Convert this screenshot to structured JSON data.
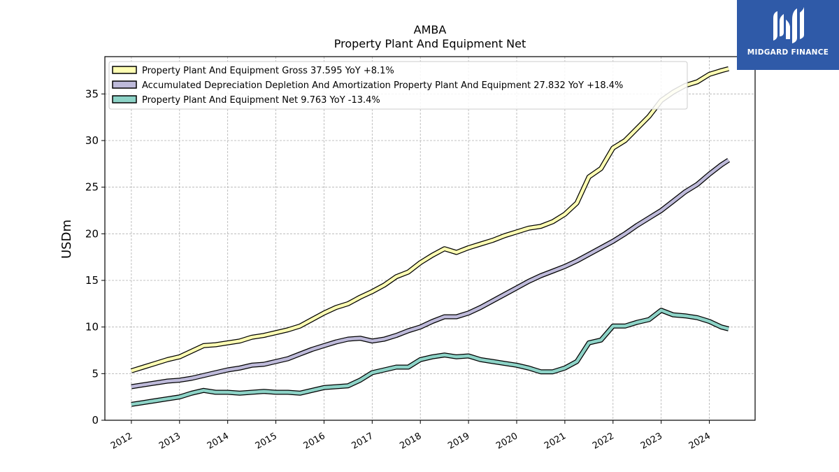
{
  "chart_data": {
    "type": "line",
    "title": "AMBA",
    "subtitle": "Property Plant And Equipment Net",
    "ylabel": "USDm",
    "xlabel": "",
    "ylim": [
      0,
      39
    ],
    "xlim": [
      2011.45,
      2024.95
    ],
    "yticks": [
      0,
      5,
      10,
      15,
      20,
      25,
      30,
      35
    ],
    "xticks": [
      "2012",
      "2013",
      "2014",
      "2015",
      "2016",
      "2017",
      "2018",
      "2019",
      "2020",
      "2021",
      "2022",
      "2023",
      "2024"
    ],
    "grid": true,
    "legend_position": "top-left",
    "x": [
      2012.0,
      2012.25,
      2012.5,
      2012.75,
      2013.0,
      2013.25,
      2013.5,
      2013.75,
      2014.0,
      2014.25,
      2014.5,
      2014.75,
      2015.0,
      2015.25,
      2015.5,
      2015.75,
      2016.0,
      2016.25,
      2016.5,
      2016.75,
      2017.0,
      2017.25,
      2017.5,
      2017.75,
      2018.0,
      2018.25,
      2018.5,
      2018.75,
      2019.0,
      2019.25,
      2019.5,
      2019.75,
      2020.0,
      2020.25,
      2020.5,
      2020.75,
      2021.0,
      2021.25,
      2021.5,
      2021.75,
      2022.0,
      2022.25,
      2022.5,
      2022.75,
      2023.0,
      2023.25,
      2023.5,
      2023.75,
      2024.0,
      2024.25,
      2024.4
    ],
    "series": [
      {
        "name": "Property Plant And Equipment Gross",
        "legend_label": "Property Plant And Equipment Gross  37.595 YoY +8.1%",
        "color": "#ffffb3",
        "values": [
          5.3,
          5.7,
          6.1,
          6.5,
          6.8,
          7.4,
          8.0,
          8.1,
          8.3,
          8.5,
          8.9,
          9.1,
          9.4,
          9.7,
          10.1,
          10.8,
          11.5,
          12.1,
          12.5,
          13.2,
          13.8,
          14.5,
          15.4,
          15.9,
          16.9,
          17.7,
          18.4,
          18.0,
          18.5,
          18.9,
          19.3,
          19.8,
          20.2,
          20.6,
          20.8,
          21.3,
          22.1,
          23.3,
          26.1,
          27.0,
          29.2,
          30.0,
          31.3,
          32.6,
          34.3,
          35.2,
          35.9,
          36.3,
          37.1,
          37.5,
          37.7
        ]
      },
      {
        "name": "Accumulated Depreciation Depletion And Amortization Property Plant And Equipment",
        "legend_label": "Accumulated Depreciation Depletion And Amortization Property Plant And Equipment  27.832 YoY +18.4%",
        "color": "#bebada",
        "values": [
          3.6,
          3.8,
          4.0,
          4.2,
          4.3,
          4.5,
          4.8,
          5.1,
          5.4,
          5.6,
          5.9,
          6.0,
          6.3,
          6.6,
          7.1,
          7.6,
          8.0,
          8.4,
          8.7,
          8.8,
          8.5,
          8.7,
          9.1,
          9.6,
          10.0,
          10.6,
          11.1,
          11.1,
          11.5,
          12.1,
          12.8,
          13.5,
          14.2,
          14.9,
          15.5,
          16.0,
          16.5,
          17.1,
          17.8,
          18.5,
          19.2,
          20.0,
          20.9,
          21.7,
          22.5,
          23.5,
          24.5,
          25.3,
          26.4,
          27.4,
          27.9
        ]
      },
      {
        "name": "Property Plant And Equipment Net",
        "legend_label": "Property Plant And Equipment Net  9.763 YoY -13.4%",
        "color": "#8dd3c7",
        "values": [
          1.7,
          1.9,
          2.1,
          2.3,
          2.5,
          2.9,
          3.2,
          3.0,
          3.0,
          2.9,
          3.0,
          3.1,
          3.0,
          3.0,
          2.9,
          3.2,
          3.5,
          3.6,
          3.7,
          4.3,
          5.1,
          5.4,
          5.7,
          5.7,
          6.5,
          6.8,
          7.0,
          6.8,
          6.9,
          6.5,
          6.3,
          6.1,
          5.9,
          5.6,
          5.2,
          5.2,
          5.6,
          6.3,
          8.3,
          8.6,
          10.1,
          10.1,
          10.5,
          10.8,
          11.8,
          11.3,
          11.2,
          11.0,
          10.6,
          10.0,
          9.8
        ]
      }
    ]
  },
  "logo": {
    "text": "MIDGARD FINANCE"
  }
}
